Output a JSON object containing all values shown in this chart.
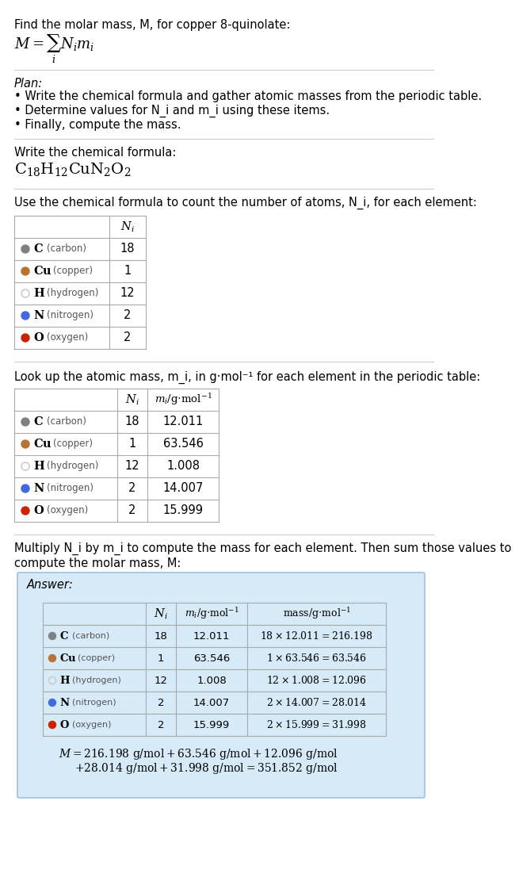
{
  "title_line": "Find the molar mass, M, for copper 8-quinolate:",
  "formula_label": "M = Σ N_i m_i (with i below sigma)",
  "plan_header": "Plan:",
  "plan_bullets": [
    "• Write the chemical formula and gather atomic masses from the periodic table.",
    "• Determine values for N_i and m_i using these items.",
    "• Finally, compute the mass."
  ],
  "chemical_formula_label": "Write the chemical formula:",
  "chemical_formula": "C_{18}H_{12}CuN_{2}O_{2}",
  "table1_header": "Use the chemical formula to count the number of atoms, N_i, for each element:",
  "table2_header": "Look up the atomic mass, m_i, in g·mol⁻¹ for each element in the periodic table:",
  "table3_intro": "Multiply N_i by m_i to compute the mass for each element. Then sum those values to\ncompute the molar mass, M:",
  "elements": [
    {
      "symbol": "C",
      "name": "carbon",
      "Ni": 18,
      "mi": 12.011,
      "dot_color": "#808080",
      "dot_filled": true
    },
    {
      "symbol": "Cu",
      "name": "copper",
      "Ni": 1,
      "mi": 63.546,
      "dot_color": "#b87333",
      "dot_filled": true
    },
    {
      "symbol": "H",
      "name": "hydrogen",
      "Ni": 12,
      "mi": 1.008,
      "dot_color": "#cccccc",
      "dot_filled": false
    },
    {
      "symbol": "N",
      "name": "nitrogen",
      "Ni": 2,
      "mi": 14.007,
      "dot_color": "#4169e1",
      "dot_filled": true
    },
    {
      "symbol": "O",
      "name": "oxygen",
      "Ni": 2,
      "mi": 15.999,
      "dot_color": "#cc2200",
      "dot_filled": true
    }
  ],
  "answer_box_color": "#d6eaf8",
  "answer_box_border": "#a9cce3",
  "final_answer_line1": "M = 216.198 g/mol + 63.546 g/mol + 12.096 g/mol",
  "final_answer_line2": "+ 28.014 g/mol + 31.998 g/mol = 351.852 g/mol",
  "bg_color": "#ffffff",
  "text_color": "#000000",
  "table_border_color": "#aaaaaa",
  "section_line_color": "#cccccc"
}
